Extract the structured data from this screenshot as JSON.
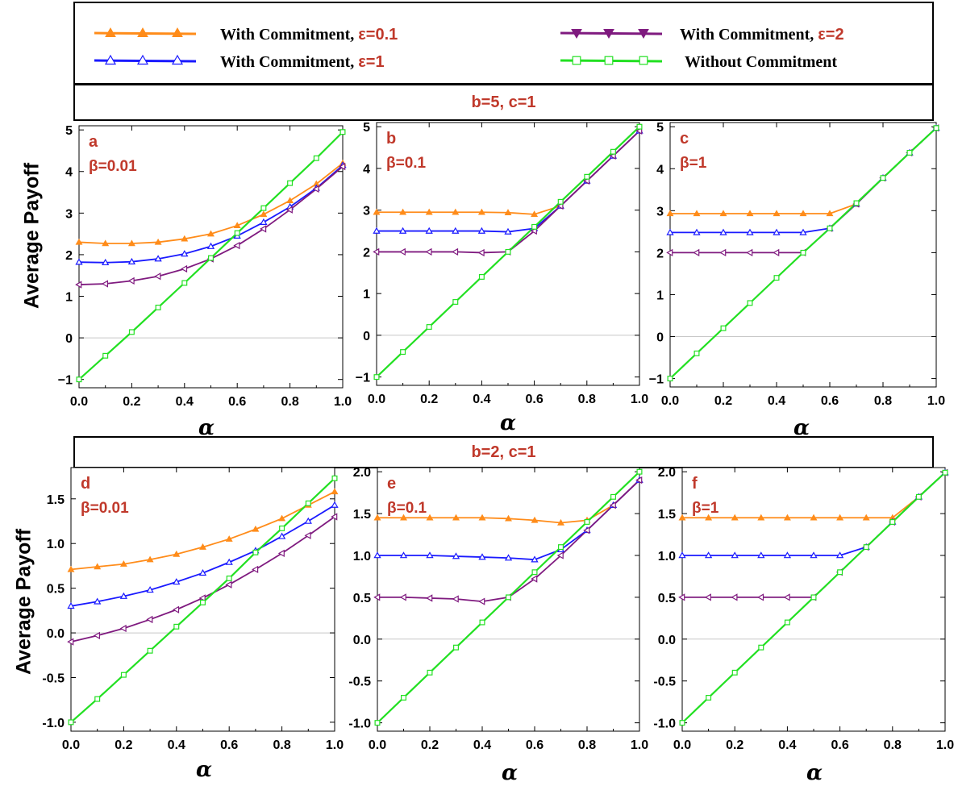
{
  "legend": {
    "items": [
      {
        "prefix": "With Commitment, ",
        "eps": "ε=0.1",
        "color": "#ff8c1a",
        "marker": "triangle-up"
      },
      {
        "prefix": "With Commitment, ",
        "eps": "ε=1",
        "color": "#1a1aff",
        "marker": "triangle-up-open"
      },
      {
        "prefix": "With Commitment, ",
        "eps": "ε=2",
        "color": "#7f1a7f",
        "marker": "triangle-down"
      },
      {
        "prefix": "Without Commitment",
        "eps": "",
        "color": "#22e022",
        "marker": "square-open"
      }
    ]
  },
  "top_band": "b=5, c=1",
  "bottom_band": "b=2, c=1",
  "ylabel_top": "Average Payoff",
  "ylabel_bottom": "Average Payoff",
  "chart_data": [
    {
      "type": "line",
      "panel": "a",
      "beta_label": "β=0.01",
      "xlabel": "α",
      "ylabel": "Average Payoff",
      "xlim": [
        0,
        1
      ],
      "ylim": [
        -1.2,
        5.1
      ],
      "xticks": [
        0.0,
        0.2,
        0.4,
        0.6,
        0.8,
        1.0
      ],
      "xtick_labels": [
        "0.0",
        "0.2",
        "0.4",
        "0.6",
        "0.8",
        "1.0"
      ],
      "yticks": [
        -1,
        0,
        1,
        2,
        3,
        4,
        5
      ],
      "ytick_labels": [
        "−1",
        "0",
        "1",
        "2",
        "3",
        "4",
        "5"
      ],
      "x": [
        0,
        0.1,
        0.2,
        0.3,
        0.4,
        0.5,
        0.6,
        0.7,
        0.8,
        0.9,
        1.0
      ],
      "series": [
        {
          "values": [
            2.3,
            2.27,
            2.27,
            2.3,
            2.38,
            2.5,
            2.7,
            2.97,
            3.3,
            3.7,
            4.2
          ]
        },
        {
          "values": [
            1.82,
            1.81,
            1.83,
            1.9,
            2.02,
            2.2,
            2.45,
            2.78,
            3.15,
            3.6,
            4.15
          ]
        },
        {
          "values": [
            1.28,
            1.3,
            1.37,
            1.48,
            1.66,
            1.9,
            2.22,
            2.62,
            3.08,
            3.58,
            4.12
          ]
        },
        {
          "values": [
            -1.0,
            -0.43,
            0.14,
            0.73,
            1.32,
            1.92,
            2.52,
            3.12,
            3.72,
            4.32,
            4.95
          ]
        }
      ]
    },
    {
      "type": "line",
      "panel": "b",
      "beta_label": "β=0.1",
      "xlabel": "α",
      "xlim": [
        0,
        1
      ],
      "ylim": [
        -1.2,
        5.1
      ],
      "xticks": [
        0.0,
        0.2,
        0.4,
        0.6,
        0.8,
        1.0
      ],
      "xtick_labels": [
        "0.0",
        "0.2",
        "0.4",
        "0.6",
        "0.8",
        "1.0"
      ],
      "yticks": [
        -1,
        0,
        1,
        2,
        3,
        4,
        5
      ],
      "ytick_labels": [
        "−1",
        "0",
        "1",
        "2",
        "3",
        "4",
        "5"
      ],
      "x": [
        0,
        0.1,
        0.2,
        0.3,
        0.4,
        0.5,
        0.6,
        0.7,
        0.8,
        0.9,
        1.0
      ],
      "series": [
        {
          "values": [
            2.95,
            2.95,
            2.95,
            2.95,
            2.95,
            2.94,
            2.9,
            3.1,
            3.7,
            4.3,
            4.9
          ]
        },
        {
          "values": [
            2.5,
            2.5,
            2.5,
            2.5,
            2.5,
            2.48,
            2.56,
            3.1,
            3.7,
            4.3,
            4.9
          ]
        },
        {
          "values": [
            2.0,
            2.0,
            2.0,
            2.0,
            1.98,
            2.0,
            2.5,
            3.1,
            3.7,
            4.3,
            4.9
          ]
        },
        {
          "values": [
            -1.0,
            -0.4,
            0.2,
            0.8,
            1.4,
            2.0,
            2.6,
            3.2,
            3.8,
            4.4,
            5.0
          ]
        }
      ]
    },
    {
      "type": "line",
      "panel": "c",
      "beta_label": "β=1",
      "xlabel": "α",
      "xlim": [
        0,
        1
      ],
      "ylim": [
        -1.2,
        5.1
      ],
      "xticks": [
        0.0,
        0.2,
        0.4,
        0.6,
        0.8,
        1.0
      ],
      "xtick_labels": [
        "0.0",
        "0.2",
        "0.4",
        "0.6",
        "0.8",
        "1.0"
      ],
      "yticks": [
        -1,
        0,
        1,
        2,
        3,
        4,
        5
      ],
      "ytick_labels": [
        "−1",
        "0",
        "1",
        "2",
        "3",
        "4",
        "5"
      ],
      "x": [
        0,
        0.1,
        0.2,
        0.3,
        0.4,
        0.5,
        0.6,
        0.7,
        0.8,
        0.9,
        1.0
      ],
      "series": [
        {
          "values": [
            2.93,
            2.93,
            2.93,
            2.93,
            2.93,
            2.93,
            2.93,
            3.16,
            3.78,
            4.38,
            4.97
          ]
        },
        {
          "values": [
            2.48,
            2.48,
            2.48,
            2.48,
            2.48,
            2.48,
            2.58,
            3.16,
            3.78,
            4.38,
            4.97
          ]
        },
        {
          "values": [
            2.0,
            2.0,
            2.0,
            2.0,
            2.0,
            2.0,
            2.58,
            3.16,
            3.78,
            4.38,
            4.97
          ]
        },
        {
          "values": [
            -1.0,
            -0.4,
            0.2,
            0.8,
            1.4,
            2.0,
            2.58,
            3.18,
            3.78,
            4.38,
            4.97
          ]
        }
      ]
    },
    {
      "type": "line",
      "panel": "d",
      "beta_label": "β=0.01",
      "xlabel": "α",
      "ylabel": "Average Payoff",
      "xlim": [
        0,
        1
      ],
      "ylim": [
        -1.1,
        1.85
      ],
      "xticks": [
        0.0,
        0.2,
        0.4,
        0.6,
        0.8,
        1.0
      ],
      "xtick_labels": [
        "0.0",
        "0.2",
        "0.4",
        "0.6",
        "0.8",
        "1.0"
      ],
      "yticks": [
        -1.0,
        -0.5,
        0.0,
        0.5,
        1.0,
        1.5
      ],
      "ytick_labels": [
        "-1.0",
        "-0.5",
        "0.0",
        "0.5",
        "1.0",
        "1.5"
      ],
      "x": [
        0,
        0.1,
        0.2,
        0.3,
        0.4,
        0.5,
        0.6,
        0.7,
        0.8,
        0.9,
        1.0
      ],
      "series": [
        {
          "values": [
            0.71,
            0.74,
            0.77,
            0.82,
            0.88,
            0.96,
            1.05,
            1.16,
            1.28,
            1.43,
            1.58
          ]
        },
        {
          "values": [
            0.3,
            0.35,
            0.41,
            0.48,
            0.57,
            0.67,
            0.79,
            0.92,
            1.08,
            1.25,
            1.43
          ]
        },
        {
          "values": [
            -0.1,
            -0.03,
            0.05,
            0.15,
            0.26,
            0.39,
            0.54,
            0.71,
            0.89,
            1.09,
            1.3
          ]
        },
        {
          "values": [
            -1.0,
            -0.74,
            -0.47,
            -0.2,
            0.07,
            0.34,
            0.61,
            0.9,
            1.17,
            1.45,
            1.73
          ]
        }
      ]
    },
    {
      "type": "line",
      "panel": "e",
      "beta_label": "β=0.1",
      "xlabel": "α",
      "xlim": [
        0,
        1
      ],
      "ylim": [
        -1.1,
        2.05
      ],
      "xticks": [
        0.0,
        0.2,
        0.4,
        0.6,
        0.8,
        1.0
      ],
      "xtick_labels": [
        "0.0",
        "0.2",
        "0.4",
        "0.6",
        "0.8",
        "1.0"
      ],
      "yticks": [
        -1.0,
        -0.5,
        0.0,
        0.5,
        1.0,
        1.5,
        2.0
      ],
      "ytick_labels": [
        "-1.0",
        "-0.5",
        "0.0",
        "0.5",
        "1.0",
        "1.5",
        "2.0"
      ],
      "x": [
        0,
        0.1,
        0.2,
        0.3,
        0.4,
        0.5,
        0.6,
        0.7,
        0.8,
        0.9,
        1.0
      ],
      "series": [
        {
          "values": [
            1.45,
            1.45,
            1.45,
            1.45,
            1.45,
            1.44,
            1.42,
            1.39,
            1.42,
            1.6,
            1.9
          ]
        },
        {
          "values": [
            1.0,
            1.0,
            1.0,
            0.99,
            0.98,
            0.97,
            0.95,
            1.07,
            1.3,
            1.6,
            1.9
          ]
        },
        {
          "values": [
            0.5,
            0.5,
            0.49,
            0.48,
            0.45,
            0.5,
            0.72,
            1.0,
            1.3,
            1.6,
            1.9
          ]
        },
        {
          "values": [
            -1.0,
            -0.7,
            -0.4,
            -0.1,
            0.2,
            0.5,
            0.8,
            1.1,
            1.4,
            1.7,
            2.0
          ]
        }
      ]
    },
    {
      "type": "line",
      "panel": "f",
      "beta_label": "β=1",
      "xlabel": "α",
      "xlim": [
        0,
        1
      ],
      "ylim": [
        -1.1,
        2.05
      ],
      "xticks": [
        0.0,
        0.2,
        0.4,
        0.6,
        0.8,
        1.0
      ],
      "xtick_labels": [
        "0.0",
        "0.2",
        "0.4",
        "0.6",
        "0.8",
        "1.0"
      ],
      "yticks": [
        -1.0,
        -0.5,
        0.0,
        0.5,
        1.0,
        1.5,
        2.0
      ],
      "ytick_labels": [
        "-1.0",
        "-0.5",
        "0.0",
        "0.5",
        "1.0",
        "1.5",
        "2.0"
      ],
      "x": [
        0,
        0.1,
        0.2,
        0.3,
        0.4,
        0.5,
        0.6,
        0.7,
        0.8,
        0.9,
        1.0
      ],
      "series": [
        {
          "values": [
            1.45,
            1.45,
            1.45,
            1.45,
            1.45,
            1.45,
            1.45,
            1.45,
            1.45,
            1.7,
            1.99
          ]
        },
        {
          "values": [
            1.0,
            1.0,
            1.0,
            1.0,
            1.0,
            1.0,
            1.0,
            1.1,
            1.4,
            1.7,
            1.99
          ]
        },
        {
          "values": [
            0.5,
            0.5,
            0.5,
            0.5,
            0.5,
            0.5,
            0.8,
            1.1,
            1.4,
            1.7,
            1.99
          ]
        },
        {
          "values": [
            -1.0,
            -0.7,
            -0.4,
            -0.1,
            0.2,
            0.5,
            0.8,
            1.1,
            1.4,
            1.7,
            1.99
          ]
        }
      ]
    }
  ]
}
